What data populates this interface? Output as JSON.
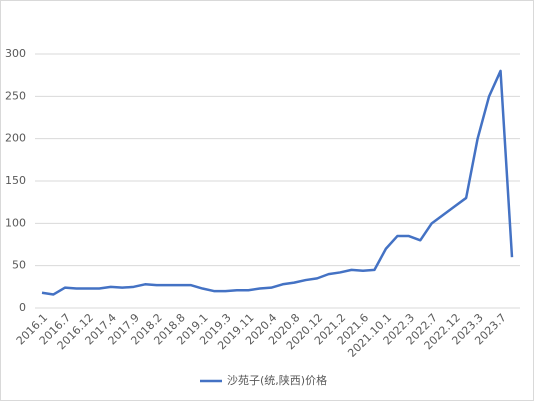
{
  "chart_data": {
    "type": "line",
    "categories": [
      "2016.1",
      null,
      "2016.7",
      null,
      "2016.12",
      null,
      "2017.4",
      null,
      "2017.9",
      null,
      "2018.2",
      null,
      "2018.8",
      null,
      "2019.1",
      null,
      "2019.3",
      null,
      "2019.11",
      null,
      "2020.4",
      null,
      "2020.8",
      null,
      "2020.12",
      null,
      "2021.2",
      null,
      "2021.6",
      null,
      "2021.10.1",
      null,
      "2022.3",
      null,
      "2022.7",
      null,
      "2022.12",
      null,
      "2023.3",
      null,
      "2023.7",
      null
    ],
    "series": [
      {
        "name": "沙苑子(统,陕西)价格",
        "color": "#4472c4",
        "values": [
          18,
          16,
          24,
          23,
          23,
          23,
          25,
          24,
          25,
          28,
          27,
          27,
          27,
          27,
          23,
          20,
          20,
          21,
          21,
          23,
          24,
          28,
          30,
          33,
          35,
          40,
          42,
          45,
          44,
          45,
          70,
          85,
          85,
          80,
          100,
          110,
          120,
          130,
          200,
          250,
          280,
          60
        ]
      }
    ],
    "ylim": [
      0,
      300
    ],
    "yticks": [
      0,
      50,
      100,
      150,
      200,
      250,
      300
    ],
    "grid": true,
    "legend": "bottom"
  }
}
